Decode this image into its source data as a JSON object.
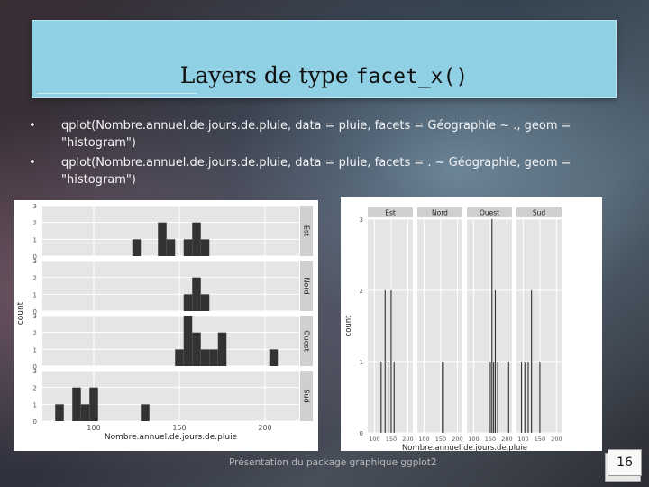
{
  "slide": {
    "title_text": "Layers de type ",
    "title_code": "facet_x()",
    "bullets": [
      "qplot(Nombre.annuel.de.jours.de.pluie, data = pluie, facets = Géographie ~ ., geom = \"histogram\")",
      "qplot(Nombre.annuel.de.jours.de.pluie, data = pluie, facets = . ~ Géographie, geom = \"histogram\")"
    ],
    "footer": "Présentation du package graphique ggplot2",
    "page_number": "16"
  },
  "chart_data": [
    {
      "type": "bar",
      "facet": "rows",
      "xlabel": "Nombre.annuel.de.jours.de.pluie",
      "ylabel": "count",
      "xlim": [
        70,
        220
      ],
      "ylim": [
        0,
        3
      ],
      "x_ticks": [
        "100",
        "150",
        "200"
      ],
      "y_ticks": [
        "0",
        "1",
        "2",
        "3"
      ],
      "bin_width": 5,
      "panels": [
        {
          "strip": "Est",
          "bins": [
            {
              "x": 125,
              "count": 1
            },
            {
              "x": 140,
              "count": 2
            },
            {
              "x": 145,
              "count": 1
            },
            {
              "x": 155,
              "count": 1
            },
            {
              "x": 160,
              "count": 2
            },
            {
              "x": 165,
              "count": 1
            }
          ]
        },
        {
          "strip": "Nord",
          "bins": [
            {
              "x": 155,
              "count": 1
            },
            {
              "x": 160,
              "count": 2
            },
            {
              "x": 165,
              "count": 1
            }
          ]
        },
        {
          "strip": "Ouest",
          "bins": [
            {
              "x": 150,
              "count": 1
            },
            {
              "x": 155,
              "count": 3
            },
            {
              "x": 160,
              "count": 2
            },
            {
              "x": 165,
              "count": 1
            },
            {
              "x": 170,
              "count": 1
            },
            {
              "x": 175,
              "count": 2
            },
            {
              "x": 205,
              "count": 1
            }
          ]
        },
        {
          "strip": "Sud",
          "bins": [
            {
              "x": 80,
              "count": 1
            },
            {
              "x": 90,
              "count": 2
            },
            {
              "x": 95,
              "count": 1
            },
            {
              "x": 100,
              "count": 2
            },
            {
              "x": 130,
              "count": 1
            }
          ]
        }
      ]
    },
    {
      "type": "bar",
      "facet": "columns",
      "xlabel": "Nombre.annuel.de.jours.de.pluie",
      "ylabel": "count",
      "xlim": [
        80,
        215
      ],
      "ylim": [
        0,
        3
      ],
      "x_ticks": [
        "100",
        "150",
        "200"
      ],
      "y_ticks": [
        "0",
        "1",
        "2",
        "3"
      ],
      "bin_width": 3,
      "panels": [
        {
          "strip": "Est",
          "bins": [
            {
              "x": 120,
              "count": 1
            },
            {
              "x": 132,
              "count": 2
            },
            {
              "x": 141,
              "count": 1
            },
            {
              "x": 150,
              "count": 2
            },
            {
              "x": 159,
              "count": 1
            }
          ]
        },
        {
          "strip": "Nord",
          "bins": [
            {
              "x": 155,
              "count": 1
            },
            {
              "x": 158,
              "count": 1
            }
          ]
        },
        {
          "strip": "Ouest",
          "bins": [
            {
              "x": 150,
              "count": 1
            },
            {
              "x": 155,
              "count": 3
            },
            {
              "x": 160,
              "count": 1
            },
            {
              "x": 165,
              "count": 2
            },
            {
              "x": 172,
              "count": 1
            },
            {
              "x": 205,
              "count": 1
            }
          ]
        },
        {
          "strip": "Sud",
          "bins": [
            {
              "x": 95,
              "count": 1
            },
            {
              "x": 105,
              "count": 1
            },
            {
              "x": 115,
              "count": 1
            },
            {
              "x": 125,
              "count": 2
            },
            {
              "x": 150,
              "count": 1
            }
          ]
        }
      ]
    }
  ]
}
